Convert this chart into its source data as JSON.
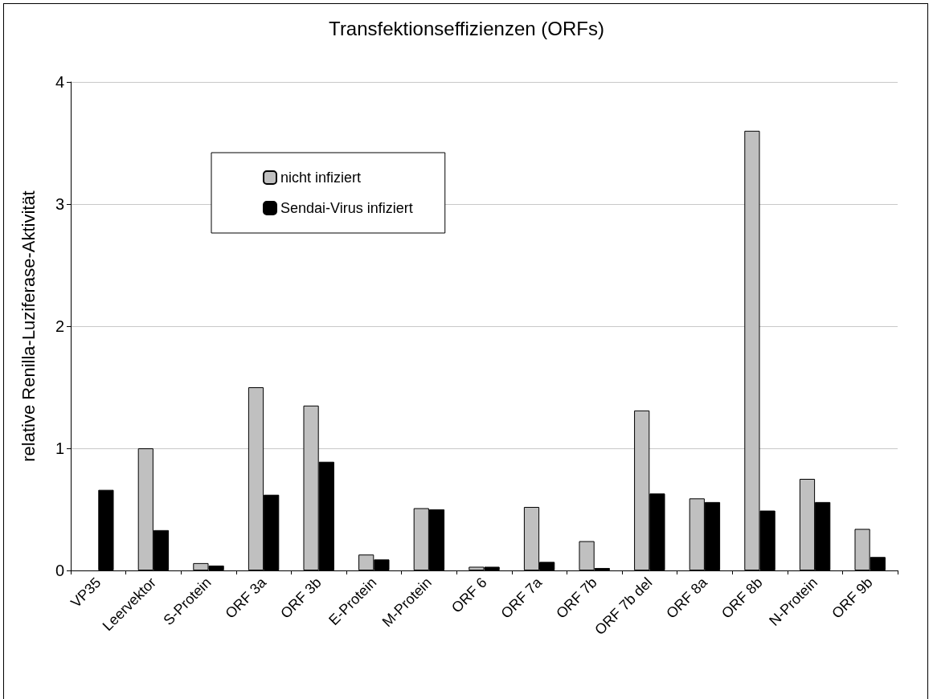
{
  "chart_data": {
    "type": "bar",
    "title": "Transfektionseffizienzen (ORFs)",
    "ylabel": "relative Renilla-Luziferase-Aktivität",
    "categories": [
      "VP35",
      "Leervektor",
      "S-Protein",
      "ORF 3a",
      "ORF 3b",
      "E-Protein",
      "M-Protein",
      "ORF 6",
      "ORF 7a",
      "ORF 7b",
      "ORF 7b del",
      "ORF 8a",
      "ORF 8b",
      "N-Protein",
      "ORF 9b"
    ],
    "series": [
      {
        "name": "nicht infiziert",
        "color": "#c0c0c0",
        "values": [
          null,
          1.0,
          0.06,
          1.5,
          1.35,
          0.13,
          0.51,
          0.03,
          0.52,
          0.24,
          1.31,
          0.59,
          3.6,
          0.75,
          0.34
        ]
      },
      {
        "name": "Sendai-Virus infiziert",
        "color": "#000000",
        "values": [
          0.66,
          0.33,
          0.04,
          0.62,
          0.89,
          0.09,
          0.5,
          0.03,
          0.07,
          0.02,
          0.63,
          0.56,
          0.49,
          0.56,
          0.11
        ]
      }
    ],
    "ylim": [
      0,
      4
    ],
    "yticks": [
      0,
      1,
      2,
      3,
      4
    ],
    "grid": "y",
    "legend": "top left"
  }
}
